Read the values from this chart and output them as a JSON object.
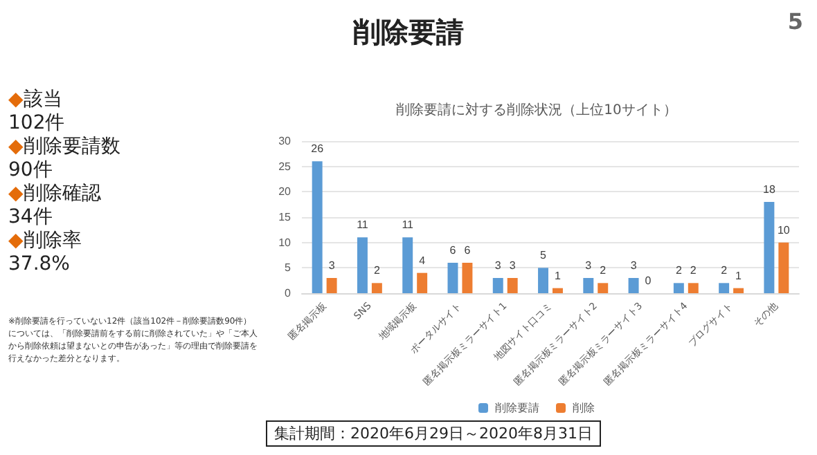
{
  "chart_data": {
    "type": "bar",
    "title": "削除要請",
    "subtitle": "削除要請に対する削除状況（上位10サイト）",
    "categories": [
      "匿名掲示板",
      "SNS",
      "地域掲示板",
      "ポータルサイト",
      "匿名掲示板ミラーサイト1",
      "地図サイト口コミ",
      "匿名掲示板ミラーサイト2",
      "匿名掲示板ミラーサイト3",
      "匿名掲示板ミラーサイト4",
      "ブログサイト",
      "その他"
    ],
    "series": [
      {
        "name": "削除要請",
        "color": "#5b9bd5",
        "values": [
          26,
          11,
          11,
          6,
          3,
          5,
          3,
          3,
          2,
          2,
          18
        ]
      },
      {
        "name": "削除",
        "color": "#ed7d31",
        "values": [
          3,
          2,
          4,
          6,
          3,
          1,
          2,
          0,
          2,
          1,
          10
        ]
      }
    ],
    "ylim": [
      0,
      30
    ],
    "yticks": [
      0,
      5,
      10,
      15,
      20,
      25,
      30
    ],
    "grid": "y",
    "legend": "bottom",
    "data_labels": true,
    "annotations": [
      "5",
      "◆該当",
      "102件",
      "◆削除要請数",
      "90件",
      "◆削除確認",
      "34件",
      "◆削除率",
      "37.8%",
      "※削除要請を行っていない12件（該当102件－削除要請数90件）については、「削除要請前をする前に削除されていた」や「ご本人から削除依頼は望まないとの申告があった」等の理由で削除要請を行えなかった差分となります。",
      "集計期間：2020年6月29日～2020年8月31日"
    ]
  }
}
